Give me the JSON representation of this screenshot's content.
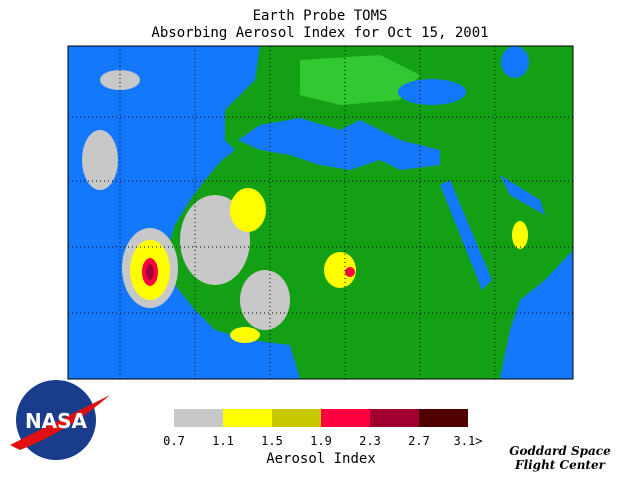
{
  "header": {
    "title": "Earth Probe TOMS",
    "subtitle": "Absorbing Aerosol Index for Oct 15, 2001"
  },
  "legend": {
    "colors": [
      "#c8c8c8",
      "#ffff00",
      "#c8c800",
      "#ff0040",
      "#a00030",
      "#500000"
    ],
    "ticks": [
      "0.7",
      "1.1",
      "1.5",
      "1.9",
      "2.3",
      "2.7",
      "3.1>"
    ],
    "label": "Aerosol Index"
  },
  "logo": {
    "text": "NASA"
  },
  "credit": {
    "lines": [
      "Goddard Space",
      "Flight Center"
    ]
  }
}
